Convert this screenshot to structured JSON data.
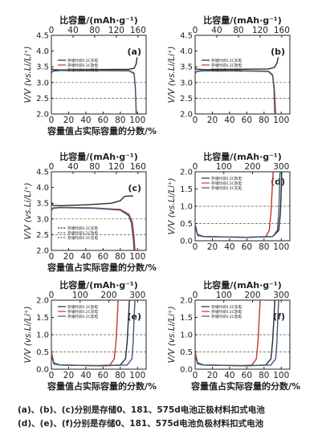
{
  "chart_data": [
    {
      "type": "line",
      "panel_label": "(a)",
      "top_axis": {
        "label": "比容量/(mAh·g⁻¹)",
        "range": [
          0,
          175
        ],
        "ticks": [
          0,
          40,
          80,
          120,
          160
        ]
      },
      "xlabel": "容量值占实际容量的分数/%",
      "xlim": [
        0,
        110
      ],
      "xticks": [
        0,
        20,
        40,
        60,
        80,
        100
      ],
      "ylabel": "V/V (vs.Li/Li⁺)",
      "ylim": [
        2.0,
        4.5
      ],
      "yticks": [
        2.0,
        2.5,
        3.0,
        3.5,
        4.0,
        4.5
      ],
      "gridlines_y": [
        2.5,
        3.0
      ],
      "legend": [
        "存储时间0.2C充电",
        "存储时间0.2C放电",
        "存储时间0.2C充电"
      ],
      "series": [
        {
          "color": "#2a2a2a",
          "x": [
            0,
            2,
            10,
            50,
            90,
            96,
            98.5,
            99.5
          ],
          "y": [
            3.45,
            3.41,
            3.4,
            3.41,
            3.42,
            3.45,
            3.6,
            3.8
          ]
        },
        {
          "color": "#c0392b",
          "x": [
            0,
            2,
            10,
            50,
            90,
            96,
            97.5,
            98.5
          ],
          "y": [
            3.32,
            3.37,
            3.39,
            3.39,
            3.38,
            3.3,
            2.8,
            2.0
          ]
        },
        {
          "color": "#3c5a7a",
          "x": [
            0,
            2,
            10,
            50,
            90,
            96,
            97.5,
            98.5
          ],
          "y": [
            3.3,
            3.36,
            3.38,
            3.38,
            3.37,
            3.28,
            2.8,
            2.0
          ]
        }
      ]
    },
    {
      "type": "line",
      "panel_label": "(b)",
      "top_axis": {
        "label": "比容量/(mAh·g⁻¹)",
        "range": [
          0,
          175
        ],
        "ticks": [
          0,
          40,
          80,
          120,
          160
        ]
      },
      "xlabel": "",
      "xlim": [
        0,
        110
      ],
      "xticks": [
        0,
        20,
        40,
        60,
        80,
        100
      ],
      "ylabel": "V/V (vs.Li/Li⁺)",
      "ylim": [
        2.0,
        4.5
      ],
      "yticks": [
        2.0,
        2.5,
        3.0,
        3.5,
        4.0,
        4.5
      ],
      "gridlines_y": [
        2.5,
        3.0
      ],
      "legend": [
        "存储时间0.2C充电",
        "存储时间0.2C放电",
        "存储时间0.2C充电"
      ],
      "series": [
        {
          "color": "#2a2a2a",
          "x": [
            0,
            2,
            10,
            50,
            85,
            92,
            95,
            96.5
          ],
          "y": [
            3.47,
            3.42,
            3.41,
            3.42,
            3.43,
            3.48,
            3.62,
            3.8
          ]
        },
        {
          "color": "#c0392b",
          "x": [
            0,
            2,
            10,
            50,
            85,
            90,
            92,
            93.5
          ],
          "y": [
            3.3,
            3.36,
            3.38,
            3.38,
            3.36,
            3.25,
            2.8,
            2.0
          ]
        },
        {
          "color": "#3c5a7a",
          "x": [
            0,
            2,
            10,
            50,
            85,
            90,
            91.5,
            92.5
          ],
          "y": [
            3.28,
            3.35,
            3.37,
            3.37,
            3.35,
            3.22,
            2.8,
            2.0
          ]
        }
      ]
    },
    {
      "type": "line",
      "panel_label": "(c)",
      "top_axis": {
        "label": "比容量/(mAh·g⁻¹)",
        "range": [
          0,
          175
        ],
        "ticks": [
          0,
          40,
          80,
          120,
          160
        ]
      },
      "xlabel": "容量值占实际容量的分数/%",
      "xlim": [
        0,
        110
      ],
      "xticks": [
        0,
        20,
        40,
        60,
        80,
        100
      ],
      "ylabel": "V/V (vs.Li/Li⁺)",
      "ylim": [
        2.0,
        4.5
      ],
      "yticks": [
        2.0,
        2.5,
        3.0,
        3.5,
        4.0,
        4.5
      ],
      "gridlines_y": [
        2.5,
        3.0
      ],
      "legend": [
        "存储时间0.2C充电",
        "存储时间0.2C放电",
        "存储时间0.2C充电"
      ],
      "series": [
        {
          "color": "#2a2a2a",
          "x": [
            0,
            2,
            10,
            40,
            70,
            80,
            85,
            92,
            95
          ],
          "y": [
            3.5,
            3.43,
            3.42,
            3.45,
            3.5,
            3.58,
            3.72,
            3.73,
            3.73
          ]
        },
        {
          "color": "#c0392b",
          "x": [
            0,
            2,
            10,
            50,
            80,
            90,
            94,
            96,
            97
          ],
          "y": [
            3.28,
            3.35,
            3.37,
            3.35,
            3.3,
            3.15,
            2.9,
            2.4,
            2.0
          ]
        },
        {
          "color": "#3c5a7a",
          "x": [
            0,
            2,
            10,
            50,
            80,
            90,
            93,
            95,
            96
          ],
          "y": [
            3.26,
            3.34,
            3.36,
            3.34,
            3.28,
            3.1,
            2.85,
            2.4,
            2.0
          ]
        }
      ]
    },
    {
      "type": "line",
      "panel_label": "(d)",
      "top_axis": {
        "label": "比容量/(mAh·g⁻¹)",
        "range": [
          0,
          330
        ],
        "ticks": [
          0,
          100,
          200,
          300
        ]
      },
      "xlabel": "",
      "xlim": [
        0,
        110
      ],
      "xticks": [
        0,
        20,
        40,
        60,
        80,
        100
      ],
      "ylabel": "V/V (vs.Li/Li⁺)",
      "ylim": [
        0.0,
        2.0
      ],
      "yticks": [
        0.0,
        0.5,
        1.0,
        1.5,
        2.0
      ],
      "gridlines_y": [
        0.5,
        1.0
      ],
      "legend": [
        "存储时间0.2C放电",
        "存储时间0.2C放电",
        "存储时间0.2C充电"
      ],
      "series": [
        {
          "color": "#2a2a2a",
          "x": [
            0,
            3,
            10,
            60,
            90,
            97,
            99,
            100,
            100.5
          ],
          "y": [
            0.4,
            0.18,
            0.12,
            0.1,
            0.12,
            0.3,
            0.8,
            1.5,
            2.0
          ]
        },
        {
          "color": "#c0392b",
          "x": [
            0,
            3,
            10,
            60,
            82,
            86,
            88,
            89.5,
            90.5
          ],
          "y": [
            0.5,
            0.15,
            0.12,
            0.1,
            0.12,
            0.3,
            0.8,
            1.5,
            2.0
          ]
        },
        {
          "color": "#3c5a7a",
          "x": [
            0,
            3,
            10,
            60,
            90,
            95.5,
            97,
            98,
            98.5
          ],
          "y": [
            0.45,
            0.16,
            0.12,
            0.1,
            0.12,
            0.3,
            0.8,
            1.5,
            2.0
          ]
        }
      ]
    },
    {
      "type": "line",
      "panel_label": "(e)",
      "top_axis": {
        "label": "比容量/(mAh·g⁻¹)",
        "range": [
          0,
          330
        ],
        "ticks": [
          0,
          100,
          200,
          300
        ]
      },
      "xlabel": "容量值占实际容量的分数/%",
      "xlim": [
        0,
        110
      ],
      "xticks": [
        0,
        20,
        40,
        60,
        80,
        100
      ],
      "ylabel": "V/V (vs.Li/Li⁺)",
      "ylim": [
        0.0,
        2.0
      ],
      "yticks": [
        0.0,
        0.5,
        1.0,
        1.5,
        2.0
      ],
      "gridlines_y": [
        0.5,
        1.0
      ],
      "legend": [
        "存储时间0.2C放电",
        "存储时间0.2C充电",
        "存储时间0.2C放电"
      ],
      "series": [
        {
          "color": "#2a2a2a",
          "x": [
            0,
            3,
            10,
            60,
            80,
            86,
            88,
            89.5,
            90.5
          ],
          "y": [
            0.45,
            0.18,
            0.12,
            0.1,
            0.12,
            0.3,
            0.8,
            1.5,
            2.0
          ]
        },
        {
          "color": "#c0392b",
          "x": [
            0,
            3,
            10,
            50,
            68,
            73,
            75,
            76.5,
            77.5
          ],
          "y": [
            0.5,
            0.16,
            0.12,
            0.1,
            0.12,
            0.3,
            0.8,
            1.5,
            2.0
          ]
        },
        {
          "color": "#3c5a7a",
          "x": [
            0,
            3,
            10,
            60,
            88,
            93.5,
            95,
            96,
            97
          ],
          "y": [
            0.4,
            0.15,
            0.12,
            0.1,
            0.12,
            0.3,
            0.8,
            1.5,
            2.0
          ]
        }
      ]
    },
    {
      "type": "line",
      "panel_label": "(f)",
      "top_axis": {
        "label": "比容量/(mAh·g⁻¹)",
        "range": [
          0,
          330
        ],
        "ticks": [
          0,
          100,
          200,
          300
        ]
      },
      "xlabel": "容量值占实际容量的分数/%",
      "xlim": [
        0,
        110
      ],
      "xticks": [
        0,
        20,
        40,
        60,
        80,
        100
      ],
      "ylabel": "V/V (vs.Li/Li⁺)",
      "ylim": [
        0.0,
        2.0
      ],
      "yticks": [
        0.0,
        0.5,
        1.0,
        1.5,
        2.0
      ],
      "gridlines_y": [
        0.5,
        1.0
      ],
      "legend": [
        "存储时间0.2C充电",
        "存储时间0.2C放电",
        "存储时间0.2C放电"
      ],
      "series": [
        {
          "color": "#2a2a2a",
          "x": [
            0,
            3,
            10,
            60,
            82,
            88,
            90,
            91.5,
            92.5
          ],
          "y": [
            0.45,
            0.18,
            0.12,
            0.1,
            0.12,
            0.3,
            0.8,
            1.5,
            2.0
          ]
        },
        {
          "color": "#c0392b",
          "x": [
            0,
            3,
            10,
            50,
            66,
            71,
            73,
            74.5,
            75.5
          ],
          "y": [
            0.5,
            0.16,
            0.12,
            0.1,
            0.12,
            0.3,
            0.8,
            1.5,
            2.0
          ]
        },
        {
          "color": "#3c5a7a",
          "x": [
            0,
            3,
            10,
            60,
            88,
            93.5,
            95,
            96,
            97
          ],
          "y": [
            0.4,
            0.15,
            0.12,
            0.1,
            0.12,
            0.3,
            0.8,
            1.5,
            2.0
          ]
        }
      ]
    }
  ],
  "caption": {
    "line1": "(a)、(b)、(c)分别是存储0、181、575d电池正极材料扣式电池",
    "line2": "(d)、(e)、(f)分别是存储0、181、575d电池负极材料扣式电池"
  }
}
